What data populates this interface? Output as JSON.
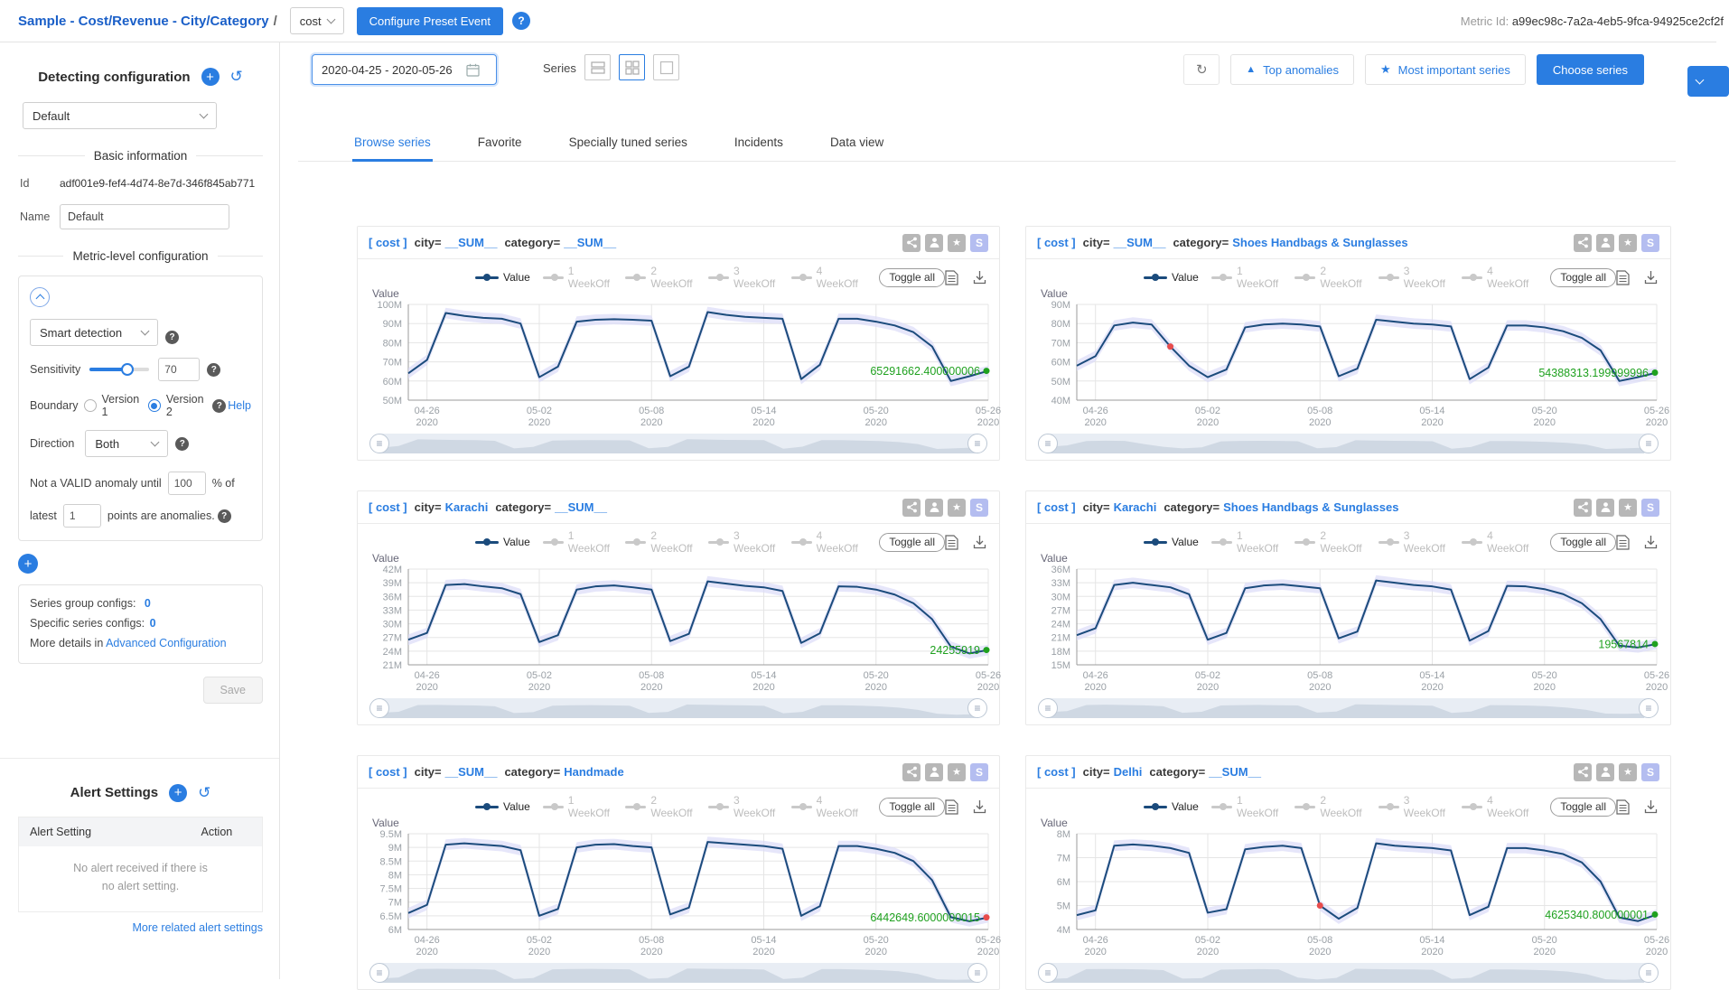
{
  "colors": {
    "accent": "#2a7de1",
    "line": "#1b4b7c",
    "band": "#dcdcf8",
    "green": "#1fa11f",
    "red": "#e84c4c",
    "grid": "#e5e5e5",
    "axis": "#9b9b9b",
    "tick_text": "#9aa0a6",
    "legend_gray": "#c9c9c9",
    "legend_gray_text": "#bdbdbd"
  },
  "header": {
    "title": "Sample - Cost/Revenue - City/Category",
    "separator": "/",
    "metric_select": "cost",
    "configure_button": "Configure Preset Event",
    "help": "?",
    "metric_id_label": "Metric Id: ",
    "metric_id": "a99ec98c-7a2a-4eb5-9fca-94925ce2cf2f"
  },
  "sidebar": {
    "detecting_title": "Detecting configuration",
    "config_select": "Default",
    "basic_info_title": "Basic information",
    "id_label": "Id",
    "id_value": "adf001e9-fef4-4d74-8e7d-346f845ab771",
    "name_label": "Name",
    "name_value": "Default",
    "metric_config_title": "Metric-level configuration",
    "detection_type": "Smart detection",
    "sensitivity_label": "Sensitivity",
    "sensitivity_value": "70",
    "boundary_label": "Boundary",
    "boundary_v1": "Version 1",
    "boundary_v2": "Version 2",
    "help_link": "Help",
    "help_q": "?",
    "direction_label": "Direction",
    "direction_value": "Both",
    "valid_text1": "Not a VALID anomaly until",
    "valid_percent": "100",
    "valid_text2": "% of",
    "latest_label": "latest",
    "latest_value": "1",
    "points_text": "points are anomalies.",
    "series_group_label": "Series group configs:",
    "series_group_count": "0",
    "specific_series_label": "Specific series configs:",
    "specific_series_count": "0",
    "more_details_text": "More details in",
    "advanced_link": "Advanced Configuration",
    "save_label": "Save",
    "alert_title": "Alert Settings",
    "alert_col_setting": "Alert Setting",
    "alert_col_action": "Action",
    "alert_empty_line1": "No alert received if there is",
    "alert_empty_line2": "no alert setting.",
    "alert_more_link": "More related alert settings"
  },
  "toolbar": {
    "date_range": "2020-04-25 - 2020-05-26",
    "series_label": "Series",
    "top_anomalies": "Top anomalies",
    "top_anomalies_icon": "▲",
    "most_important": "Most important series",
    "most_important_icon": "★",
    "choose_series": "Choose series",
    "refresh_icon": "↻"
  },
  "tabs": [
    {
      "label": "Browse series",
      "active": true
    },
    {
      "label": "Favorite",
      "active": false
    },
    {
      "label": "Specially tuned series",
      "active": false
    },
    {
      "label": "Incidents",
      "active": false
    },
    {
      "label": "Data view",
      "active": false
    }
  ],
  "legend": {
    "value_label": "Value",
    "offsets": [
      "1 WeekOff",
      "2 WeekOff",
      "3 WeekOff",
      "4 WeekOff"
    ],
    "toggle_all": "Toggle all"
  },
  "card_icons": [
    {
      "name": "auto-tuning-icon",
      "glyph": "share"
    },
    {
      "name": "person-config-icon",
      "glyph": "person"
    },
    {
      "name": "favorite-star-icon",
      "glyph": "star"
    },
    {
      "name": "s-badge",
      "glyph": "S"
    }
  ],
  "chart_data": [
    {
      "type": "line",
      "title": {
        "metric": "[ cost ]",
        "dims": [
          {
            "label": "city=",
            "value": "__SUM__"
          },
          {
            "label": "category=",
            "value": "__SUM__"
          }
        ]
      },
      "ylabel": "Value",
      "ymin": 50,
      "ymax": 100,
      "yticks": [
        "100M",
        "90M",
        "80M",
        "70M",
        "60M",
        "50M"
      ],
      "xticks": [
        "04-26",
        "05-02",
        "05-08",
        "05-14",
        "05-20",
        "05-26"
      ],
      "xtick_year": "2020",
      "xtick_indices": [
        1,
        7,
        13,
        19,
        25,
        31
      ],
      "values": [
        64,
        71,
        95.5,
        94,
        93,
        92.5,
        90,
        62,
        67.5,
        91,
        92,
        92.3,
        92,
        91.5,
        62.5,
        67.5,
        96,
        94.5,
        93.5,
        93,
        92.5,
        61,
        68.5,
        92.5,
        92.5,
        91,
        89,
        85.5,
        78,
        60,
        62.5,
        65.2916624
      ],
      "annotation": "65291662.400000006",
      "anomaly_indices": [],
      "last_point": "green"
    },
    {
      "type": "line",
      "title": {
        "metric": "[ cost ]",
        "dims": [
          {
            "label": "city=",
            "value": "__SUM__"
          },
          {
            "label": "category=",
            "value": "Shoes Handbags & Sunglasses"
          }
        ]
      },
      "ylabel": "Value",
      "ymin": 40,
      "ymax": 90,
      "yticks": [
        "90M",
        "80M",
        "70M",
        "60M",
        "50M",
        "40M"
      ],
      "xticks": [
        "04-26",
        "05-02",
        "05-08",
        "05-14",
        "05-20",
        "05-26"
      ],
      "xtick_year": "2020",
      "xtick_indices": [
        1,
        7,
        13,
        19,
        25,
        31
      ],
      "values": [
        58,
        63,
        79,
        80.5,
        79.5,
        68,
        58,
        52,
        56,
        78,
        79.5,
        80,
        79.5,
        78.5,
        52.5,
        56.5,
        82,
        81,
        80,
        79.5,
        78.5,
        51,
        57,
        79,
        79,
        78,
        76,
        72.5,
        66,
        50,
        52,
        54.3883132
      ],
      "annotation": "54388313.199999996",
      "anomaly_indices": [
        5
      ],
      "last_point": "green"
    },
    {
      "type": "line",
      "title": {
        "metric": "[ cost ]",
        "dims": [
          {
            "label": "city=",
            "value": "Karachi"
          },
          {
            "label": "category=",
            "value": "__SUM__"
          }
        ]
      },
      "ylabel": "Value",
      "ymin": 21,
      "ymax": 42,
      "yticks": [
        "42M",
        "39M",
        "36M",
        "33M",
        "30M",
        "27M",
        "24M",
        "21M"
      ],
      "xticks": [
        "04-26",
        "05-02",
        "05-08",
        "05-14",
        "05-20",
        "05-26"
      ],
      "xtick_year": "2020",
      "xtick_indices": [
        1,
        7,
        13,
        19,
        25,
        31
      ],
      "values": [
        26.5,
        28,
        38.5,
        38.7,
        38.2,
        37.8,
        36.5,
        26,
        27.5,
        37.5,
        38.2,
        38.4,
        38,
        37.5,
        26.2,
        27.8,
        39.3,
        38.8,
        38.3,
        38,
        37.2,
        25.8,
        27.9,
        38.2,
        38.1,
        37.5,
        36.4,
        34.5,
        31,
        25,
        23.5,
        24.255919
      ],
      "annotation": "24255919",
      "anomaly_indices": [],
      "last_point": "green"
    },
    {
      "type": "line",
      "title": {
        "metric": "[ cost ]",
        "dims": [
          {
            "label": "city=",
            "value": "Karachi"
          },
          {
            "label": "category=",
            "value": "Shoes Handbags & Sunglasses"
          }
        ]
      },
      "ylabel": "Value",
      "ymin": 15,
      "ymax": 36,
      "yticks": [
        "36M",
        "33M",
        "30M",
        "27M",
        "24M",
        "21M",
        "18M",
        "15M"
      ],
      "xticks": [
        "04-26",
        "05-02",
        "05-08",
        "05-14",
        "05-20",
        "05-26"
      ],
      "xtick_year": "2020",
      "xtick_indices": [
        1,
        7,
        13,
        19,
        25,
        31
      ],
      "values": [
        21.5,
        23,
        32.5,
        33,
        32.5,
        32,
        30.5,
        20.5,
        22,
        31.8,
        32.4,
        32.6,
        32.2,
        31.8,
        20.8,
        22.3,
        33.5,
        33,
        32.5,
        32.2,
        31.5,
        20.3,
        22.4,
        32.3,
        32.2,
        31.6,
        30.5,
        28.5,
        25,
        19.2,
        18.8,
        19.567814
      ],
      "annotation": "19567814",
      "anomaly_indices": [],
      "last_point": "green"
    },
    {
      "type": "line",
      "title": {
        "metric": "[ cost ]",
        "dims": [
          {
            "label": "city=",
            "value": "__SUM__"
          },
          {
            "label": "category=",
            "value": "Handmade"
          }
        ]
      },
      "ylabel": "Value",
      "ymin": 6,
      "ymax": 9.5,
      "yticks": [
        "9.5M",
        "9M",
        "8.5M",
        "8M",
        "7.5M",
        "7M",
        "6.5M",
        "6M"
      ],
      "xticks": [
        "04-26",
        "05-02",
        "05-08",
        "05-14",
        "05-20",
        "05-26"
      ],
      "xtick_year": "2020",
      "xtick_indices": [
        1,
        7,
        13,
        19,
        25,
        31
      ],
      "values": [
        6.6,
        6.9,
        9.1,
        9.15,
        9.1,
        9.05,
        8.9,
        6.5,
        6.75,
        9.0,
        9.1,
        9.12,
        9.05,
        9.0,
        6.55,
        6.8,
        9.2,
        9.15,
        9.1,
        9.05,
        8.95,
        6.5,
        6.85,
        9.05,
        9.05,
        8.95,
        8.8,
        8.5,
        7.8,
        6.45,
        6.3,
        6.4426496
      ],
      "annotation": "6442649.6000000015",
      "anomaly_indices": [],
      "last_point": "red"
    },
    {
      "type": "line",
      "title": {
        "metric": "[ cost ]",
        "dims": [
          {
            "label": "city=",
            "value": "Delhi"
          },
          {
            "label": "category=",
            "value": "__SUM__"
          }
        ]
      },
      "ylabel": "Value",
      "ymin": 4,
      "ymax": 8,
      "yticks": [
        "8M",
        "7M",
        "6M",
        "5M",
        "4M"
      ],
      "xticks": [
        "04-26",
        "05-02",
        "05-08",
        "05-14",
        "05-20",
        "05-26"
      ],
      "xtick_year": "2020",
      "xtick_indices": [
        1,
        7,
        13,
        19,
        25,
        31
      ],
      "values": [
        4.6,
        4.8,
        7.5,
        7.55,
        7.5,
        7.4,
        7.2,
        4.7,
        4.85,
        7.35,
        7.45,
        7.5,
        7.4,
        5.0,
        4.45,
        4.9,
        7.6,
        7.5,
        7.45,
        7.4,
        7.3,
        4.6,
        4.95,
        7.4,
        7.4,
        7.3,
        7.15,
        6.8,
        6.0,
        4.5,
        4.35,
        4.6253408
      ],
      "annotation": "4625340.800000001",
      "anomaly_indices": [
        13
      ],
      "last_point": "green"
    }
  ]
}
